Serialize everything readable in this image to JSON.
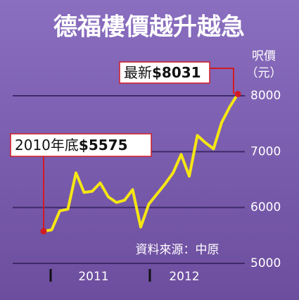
{
  "chart_data": {
    "type": "line",
    "title": "德福樓價越升越急",
    "y_label": [
      "呎價",
      "（元）"
    ],
    "source": "資料來源：中原",
    "categories": [
      null,
      null,
      null,
      null,
      null,
      null,
      null,
      null,
      null,
      null,
      null,
      null,
      null,
      null,
      null,
      null,
      null,
      null,
      null,
      null,
      null,
      null,
      null,
      null,
      null
    ],
    "x_labels": [
      "2011",
      "2012"
    ],
    "series": [
      {
        "name": "呎價",
        "color": "#f5e614",
        "values": [
          5575,
          5600,
          5940,
          5970,
          6620,
          6270,
          6290,
          6440,
          6190,
          6090,
          6130,
          6320,
          5650,
          6060,
          6240,
          6420,
          6620,
          6950,
          6560,
          7290,
          7160,
          7050,
          7520,
          7800,
          8031
        ]
      }
    ],
    "ylim": [
      5000,
      8000
    ],
    "yticks": [
      5000,
      6000,
      7000,
      8000
    ],
    "grid": true,
    "annotations": [
      {
        "text": "2010年底",
        "value_label": "$5575"
      },
      {
        "text": "最新",
        "value_label": "$8031"
      }
    ]
  }
}
